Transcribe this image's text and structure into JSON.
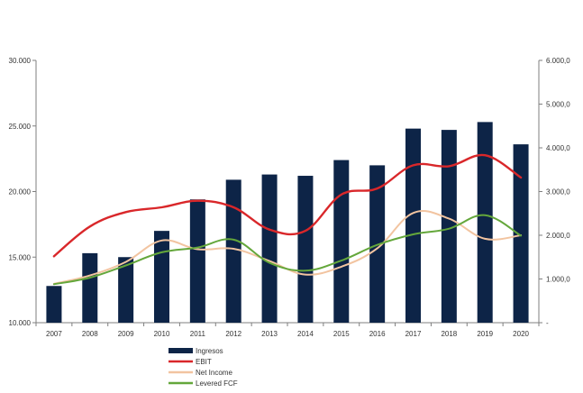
{
  "chart_data": {
    "type": "bar+line",
    "categories": [
      "2007",
      "2008",
      "2009",
      "2010",
      "2011",
      "2012",
      "2013",
      "2014",
      "2015",
      "2016",
      "2017",
      "2018",
      "2019",
      "2020"
    ],
    "bar_series": {
      "name": "Ingresos",
      "axis": "left",
      "color": "#0d2447",
      "values": [
        12800,
        15300,
        15000,
        17000,
        19400,
        20900,
        21300,
        21200,
        22400,
        22000,
        24800,
        24700,
        25300,
        23600
      ]
    },
    "line_series": [
      {
        "name": "EBIT",
        "axis": "right",
        "color": "#d9272a",
        "values": [
          1520,
          2200,
          2530,
          2640,
          2790,
          2640,
          2130,
          2100,
          2930,
          3070,
          3600,
          3580,
          3830,
          3320
        ]
      },
      {
        "name": "Net Income",
        "axis": "right",
        "color": "#f2c4a0",
        "values": [
          890,
          1080,
          1390,
          1880,
          1680,
          1690,
          1410,
          1100,
          1280,
          1700,
          2510,
          2380,
          1920,
          2000
        ]
      },
      {
        "name": "Levered FCF",
        "axis": "right",
        "color": "#64a73b",
        "values": [
          880,
          1030,
          1310,
          1610,
          1720,
          1900,
          1370,
          1190,
          1420,
          1780,
          2020,
          2150,
          2460,
          1990
        ]
      }
    ],
    "left_axis": {
      "min": 10000,
      "max": 30000,
      "ticks": [
        "10.000",
        "15.000",
        "20.000",
        "25.000",
        "30.000"
      ]
    },
    "right_axis": {
      "min": 0,
      "max": 6000,
      "ticks": [
        "-",
        "1.000,0",
        "2.000,0",
        "3.000,0",
        "4.000,0",
        "5.000,0",
        "6.000,0"
      ]
    },
    "legend_position": "bottom",
    "grid": false
  }
}
